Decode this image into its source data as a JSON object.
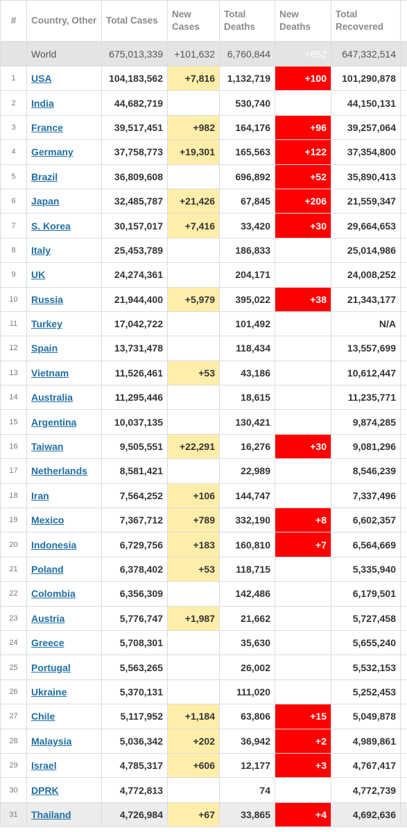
{
  "table": {
    "header": [
      "#",
      "Country, Other",
      "Total Cases",
      "New Cases",
      "Total Deaths",
      "New Deaths",
      "Total Recovered"
    ],
    "world": [
      null,
      "World",
      "675,013,339",
      "+101,632",
      "6,760,844",
      "+852",
      "647,332,514"
    ],
    "rows": [
      [
        1,
        "USA",
        "104,183,562",
        "+7,816",
        "1,132,719",
        "+100",
        "101,290,878"
      ],
      [
        2,
        "India",
        "44,682,719",
        null,
        "530,740",
        null,
        "44,150,131"
      ],
      [
        3,
        "France",
        "39,517,451",
        "+982",
        "164,176",
        "+96",
        "39,257,064"
      ],
      [
        4,
        "Germany",
        "37,758,773",
        "+19,301",
        "165,563",
        "+122",
        "37,354,800"
      ],
      [
        5,
        "Brazil",
        "36,809,608",
        null,
        "696,892",
        "+52",
        "35,890,413"
      ],
      [
        6,
        "Japan",
        "32,485,787",
        "+21,426",
        "67,845",
        "+206",
        "21,559,347"
      ],
      [
        7,
        "S. Korea",
        "30,157,017",
        "+7,416",
        "33,420",
        "+30",
        "29,664,653"
      ],
      [
        8,
        "Italy",
        "25,453,789",
        null,
        "186,833",
        null,
        "25,014,986"
      ],
      [
        9,
        "UK",
        "24,274,361",
        null,
        "204,171",
        null,
        "24,008,252"
      ],
      [
        10,
        "Russia",
        "21,944,400",
        "+5,979",
        "395,022",
        "+38",
        "21,343,177"
      ],
      [
        11,
        "Turkey",
        "17,042,722",
        null,
        "101,492",
        null,
        "N/A"
      ],
      [
        12,
        "Spain",
        "13,731,478",
        null,
        "118,434",
        null,
        "13,557,699"
      ],
      [
        13,
        "Vietnam",
        "11,526,461",
        "+53",
        "43,186",
        null,
        "10,612,447"
      ],
      [
        14,
        "Australia",
        "11,295,446",
        null,
        "18,615",
        null,
        "11,235,771"
      ],
      [
        15,
        "Argentina",
        "10,037,135",
        null,
        "130,421",
        null,
        "9,874,285"
      ],
      [
        16,
        "Taiwan",
        "9,505,551",
        "+22,291",
        "16,276",
        "+30",
        "9,081,296"
      ],
      [
        17,
        "Netherlands",
        "8,581,421",
        null,
        "22,989",
        null,
        "8,546,239"
      ],
      [
        18,
        "Iran",
        "7,564,252",
        "+106",
        "144,747",
        null,
        "7,337,496"
      ],
      [
        19,
        "Mexico",
        "7,367,712",
        "+789",
        "332,190",
        "+8",
        "6,602,357"
      ],
      [
        20,
        "Indonesia",
        "6,729,756",
        "+183",
        "160,810",
        "+7",
        "6,564,669"
      ],
      [
        21,
        "Poland",
        "6,378,402",
        "+53",
        "118,715",
        null,
        "5,335,940"
      ],
      [
        22,
        "Colombia",
        "6,356,309",
        null,
        "142,486",
        null,
        "6,179,501"
      ],
      [
        23,
        "Austria",
        "5,776,747",
        "+1,987",
        "21,662",
        null,
        "5,727,458"
      ],
      [
        24,
        "Greece",
        "5,708,301",
        null,
        "35,630",
        null,
        "5,655,240"
      ],
      [
        25,
        "Portugal",
        "5,563,265",
        null,
        "26,002",
        null,
        "5,532,153"
      ],
      [
        26,
        "Ukraine",
        "5,370,131",
        null,
        "111,020",
        null,
        "5,252,453"
      ],
      [
        27,
        "Chile",
        "5,117,952",
        "+1,184",
        "63,806",
        "+15",
        "5,049,878"
      ],
      [
        28,
        "Malaysia",
        "5,036,342",
        "+202",
        "36,942",
        "+2",
        "4,989,861"
      ],
      [
        29,
        "Israel",
        "4,785,317",
        "+606",
        "12,177",
        "+3",
        "4,767,417"
      ],
      [
        30,
        "DPRK",
        "4,772,813",
        null,
        "74",
        null,
        "4,772,739"
      ],
      [
        31,
        "Thailand",
        "4,726,984",
        "+67",
        "33,865",
        "+4",
        "4,692,636"
      ]
    ]
  }
}
